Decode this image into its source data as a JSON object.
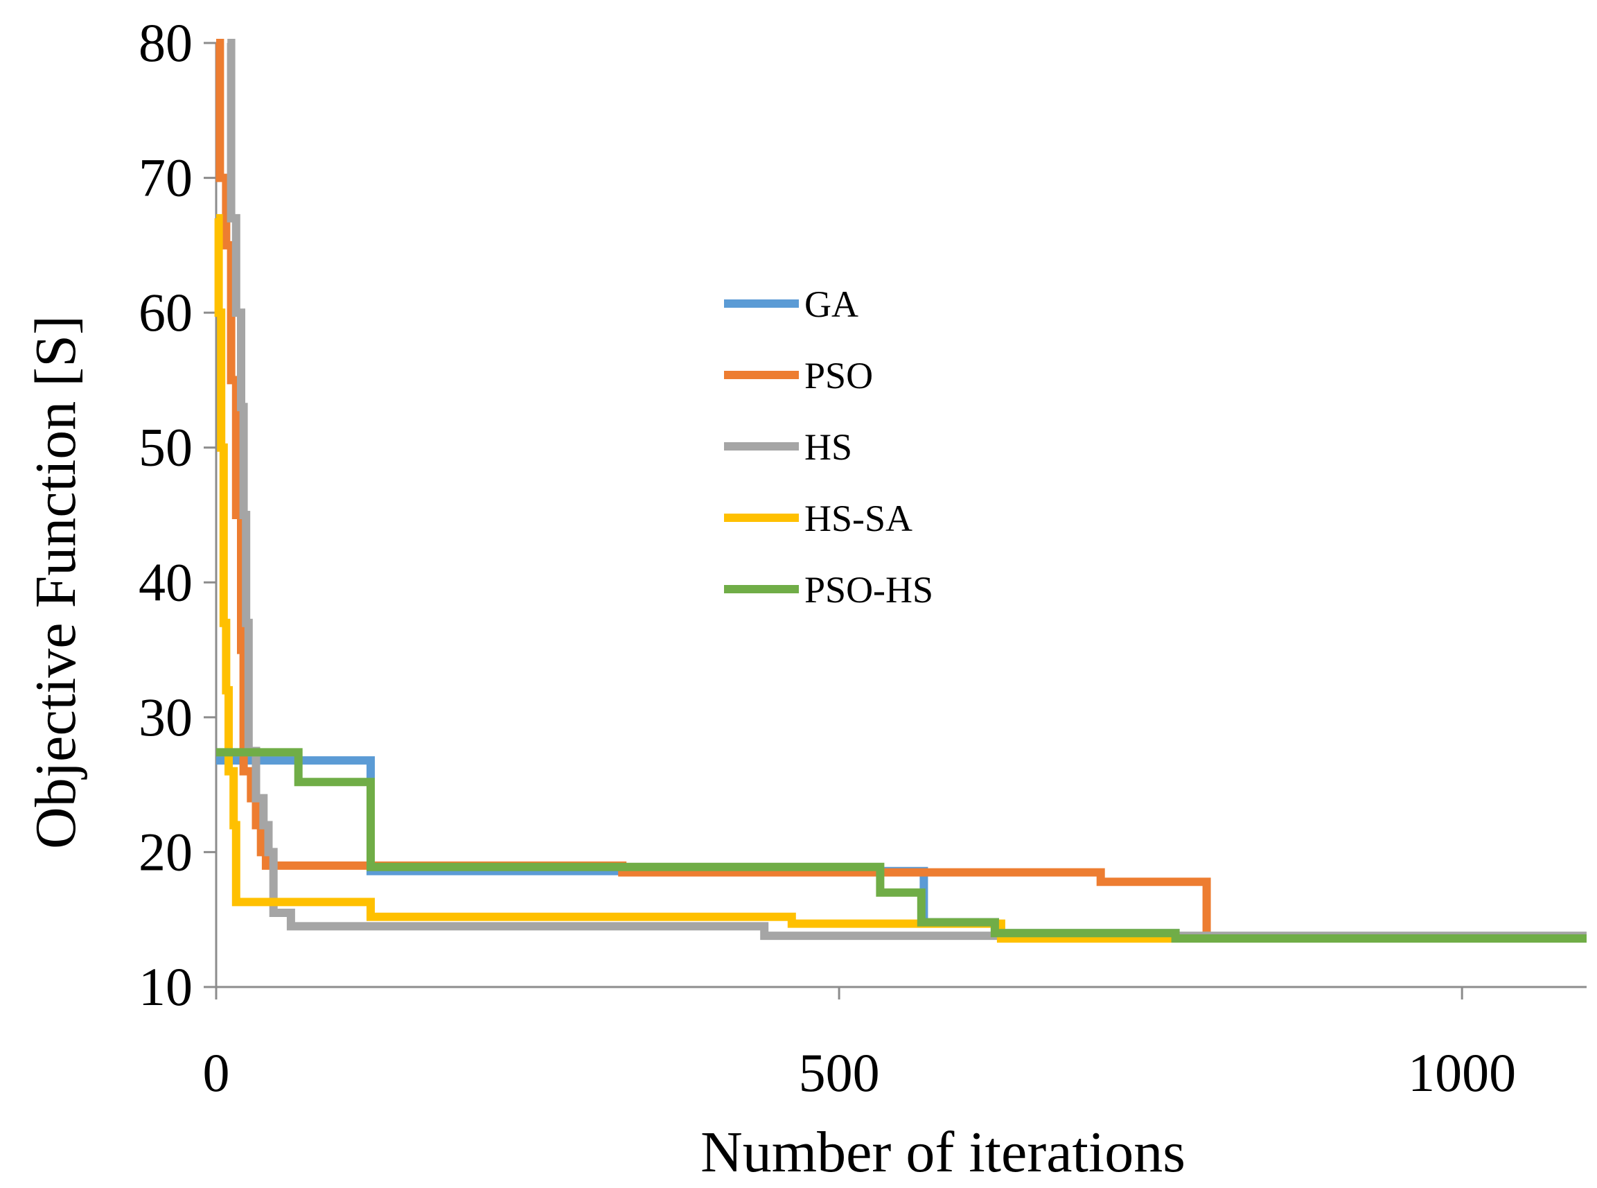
{
  "chart_data": {
    "type": "line",
    "title": "",
    "xlabel": "Number of iterations",
    "ylabel": "Objective Function [S]",
    "xlim": [
      0,
      1100
    ],
    "ylim": [
      10,
      80
    ],
    "x_ticks": [
      0,
      500,
      1000
    ],
    "x_tick_labels": [
      "0",
      "500",
      "1000"
    ],
    "y_ticks": [
      10,
      20,
      30,
      40,
      50,
      60,
      70,
      80
    ],
    "y_tick_labels": [
      "10",
      "20",
      "30",
      "40",
      "50",
      "60",
      "70",
      "80"
    ],
    "grid": false,
    "legend_position": "center",
    "series": [
      {
        "name": "GA",
        "color": "#5B9BD5",
        "step": true,
        "points": [
          [
            0,
            26.8
          ],
          [
            124,
            26.8
          ],
          [
            124,
            18.6
          ],
          [
            568,
            18.6
          ],
          [
            568,
            14.8
          ],
          [
            625,
            14.8
          ],
          [
            625,
            14.0
          ],
          [
            770,
            14.0
          ],
          [
            770,
            13.6
          ],
          [
            1100,
            13.6
          ]
        ]
      },
      {
        "name": "PSO",
        "color": "#ED7D31",
        "step": true,
        "points": [
          [
            0,
            80
          ],
          [
            3,
            80
          ],
          [
            3,
            70
          ],
          [
            8,
            70
          ],
          [
            8,
            65
          ],
          [
            12,
            65
          ],
          [
            12,
            55
          ],
          [
            16,
            55
          ],
          [
            16,
            45
          ],
          [
            20,
            45
          ],
          [
            20,
            35
          ],
          [
            22,
            35
          ],
          [
            22,
            26
          ],
          [
            28,
            26
          ],
          [
            28,
            24
          ],
          [
            32,
            24
          ],
          [
            32,
            22
          ],
          [
            36,
            22
          ],
          [
            36,
            20
          ],
          [
            40,
            20
          ],
          [
            40,
            19
          ],
          [
            326,
            19
          ],
          [
            326,
            18.5
          ],
          [
            710,
            18.5
          ],
          [
            710,
            17.8
          ],
          [
            795,
            17.8
          ],
          [
            795,
            13.6
          ],
          [
            1100,
            13.6
          ]
        ]
      },
      {
        "name": "HS",
        "color": "#A5A5A5",
        "step": true,
        "points": [
          [
            9,
            80
          ],
          [
            12,
            80
          ],
          [
            12,
            67
          ],
          [
            16,
            67
          ],
          [
            16,
            60
          ],
          [
            20,
            60
          ],
          [
            20,
            53
          ],
          [
            22,
            53
          ],
          [
            22,
            45
          ],
          [
            24,
            45
          ],
          [
            24,
            37
          ],
          [
            26,
            37
          ],
          [
            26,
            27.5
          ],
          [
            32,
            27.5
          ],
          [
            32,
            24
          ],
          [
            38,
            24
          ],
          [
            38,
            22
          ],
          [
            42,
            22
          ],
          [
            42,
            20
          ],
          [
            46,
            20
          ],
          [
            46,
            15.5
          ],
          [
            60,
            15.5
          ],
          [
            60,
            14.5
          ],
          [
            440,
            14.5
          ],
          [
            440,
            13.8
          ],
          [
            1100,
            13.8
          ]
        ]
      },
      {
        "name": "HS-SA",
        "color": "#FFC000",
        "step": true,
        "points": [
          [
            0,
            67
          ],
          [
            2,
            67
          ],
          [
            2,
            60
          ],
          [
            4,
            60
          ],
          [
            4,
            50
          ],
          [
            6,
            50
          ],
          [
            6,
            37
          ],
          [
            8,
            37
          ],
          [
            8,
            32
          ],
          [
            10,
            32
          ],
          [
            10,
            26
          ],
          [
            14,
            26
          ],
          [
            14,
            22
          ],
          [
            16,
            22
          ],
          [
            16,
            16.3
          ],
          [
            124,
            16.3
          ],
          [
            124,
            15.2
          ],
          [
            462,
            15.2
          ],
          [
            462,
            14.7
          ],
          [
            630,
            14.7
          ],
          [
            630,
            13.6
          ],
          [
            1100,
            13.6
          ]
        ]
      },
      {
        "name": "PSO-HS",
        "color": "#70AD47",
        "step": true,
        "points": [
          [
            0,
            27.4
          ],
          [
            66,
            27.4
          ],
          [
            66,
            25.2
          ],
          [
            124,
            25.2
          ],
          [
            124,
            18.9
          ],
          [
            533,
            18.9
          ],
          [
            533,
            17.0
          ],
          [
            566,
            17.0
          ],
          [
            566,
            14.8
          ],
          [
            625,
            14.8
          ],
          [
            625,
            14.0
          ],
          [
            770,
            14.0
          ],
          [
            770,
            13.6
          ],
          [
            1100,
            13.6
          ]
        ]
      }
    ]
  }
}
